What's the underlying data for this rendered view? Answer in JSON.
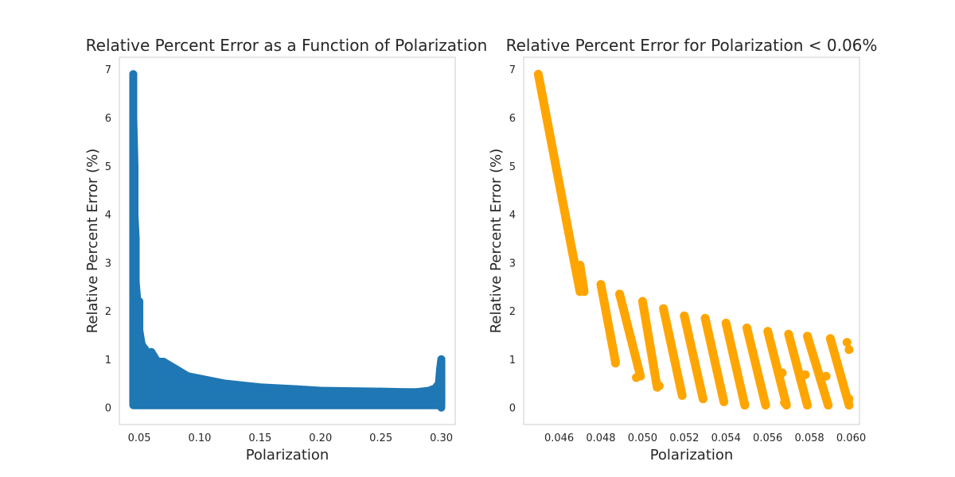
{
  "chart_data": [
    {
      "type": "scatter",
      "title": "Relative Percent Error as a Function of Polarization",
      "xlabel": "Polarization",
      "ylabel": "Relative Percent Error (%)",
      "xlim": [
        0.0335,
        0.3115
      ],
      "ylim": [
        -0.35,
        7.25
      ],
      "xticks": [
        0.05,
        0.1,
        0.15,
        0.2,
        0.25,
        0.3
      ],
      "xtick_labels": [
        "0.05",
        "0.10",
        "0.15",
        "0.20",
        "0.25",
        "0.30"
      ],
      "yticks": [
        0,
        1,
        2,
        3,
        4,
        5,
        6,
        7
      ],
      "ytick_labels": [
        "0",
        "1",
        "2",
        "3",
        "4",
        "5",
        "6",
        "7"
      ],
      "grid": false,
      "color": "#1f77b4",
      "x": [
        0.045,
        0.045,
        0.046,
        0.046,
        0.047,
        0.047,
        0.047,
        0.048,
        0.048,
        0.049,
        0.05,
        0.05,
        0.052,
        0.055,
        0.058,
        0.06,
        0.065,
        0.07,
        0.08,
        0.09,
        0.1,
        0.12,
        0.15,
        0.18,
        0.2,
        0.22,
        0.25,
        0.27,
        0.28,
        0.29,
        0.295,
        0.298,
        0.299,
        0.3,
        0.3
      ],
      "y": [
        6.9,
        6.0,
        5.0,
        4.0,
        3.5,
        3.0,
        2.6,
        2.3,
        2.0,
        1.8,
        2.2,
        1.6,
        1.3,
        1.2,
        1.0,
        1.15,
        0.95,
        0.95,
        0.8,
        0.65,
        0.6,
        0.5,
        0.42,
        0.38,
        0.35,
        0.34,
        0.33,
        0.32,
        0.32,
        0.35,
        0.4,
        0.5,
        0.8,
        1.0,
        0.0
      ]
    },
    {
      "type": "scatter",
      "title": "Relative Percent Error for Polarization < 0.06%",
      "xlabel": "Polarization",
      "ylabel": "Relative Percent Error (%)",
      "xlim": [
        0.0443,
        0.0604
      ],
      "ylim": [
        -0.35,
        7.25
      ],
      "xticks": [
        0.046,
        0.048,
        0.05,
        0.052,
        0.054,
        0.056,
        0.058,
        0.06
      ],
      "xtick_labels": [
        "0.046",
        "0.048",
        "0.050",
        "0.052",
        "0.054",
        "0.056",
        "0.058",
        "0.060"
      ],
      "yticks": [
        0,
        1,
        2,
        3,
        4,
        5,
        6,
        7
      ],
      "ytick_labels": [
        "0",
        "1",
        "2",
        "3",
        "4",
        "5",
        "6",
        "7"
      ],
      "grid": false,
      "color": "#ffa500",
      "segments": [
        {
          "x0": 0.045,
          "y0": 6.9,
          "x1": 0.047,
          "y1": 2.4
        },
        {
          "x0": 0.047,
          "y0": 2.95,
          "x1": 0.0472,
          "y1": 2.4
        },
        {
          "x0": 0.048,
          "y0": 2.55,
          "x1": 0.0487,
          "y1": 0.95
        },
        {
          "x0": 0.0489,
          "y0": 2.35,
          "x1": 0.0499,
          "y1": 0.65
        },
        {
          "x0": 0.05,
          "y0": 2.2,
          "x1": 0.0507,
          "y1": 0.42
        },
        {
          "x0": 0.051,
          "y0": 2.05,
          "x1": 0.0519,
          "y1": 0.25
        },
        {
          "x0": 0.052,
          "y0": 1.9,
          "x1": 0.0529,
          "y1": 0.18
        },
        {
          "x0": 0.053,
          "y0": 1.85,
          "x1": 0.0539,
          "y1": 0.12
        },
        {
          "x0": 0.054,
          "y0": 1.75,
          "x1": 0.0549,
          "y1": 0.05
        },
        {
          "x0": 0.055,
          "y0": 1.65,
          "x1": 0.0559,
          "y1": 0.05
        },
        {
          "x0": 0.056,
          "y0": 1.58,
          "x1": 0.0569,
          "y1": 0.05
        },
        {
          "x0": 0.057,
          "y0": 1.52,
          "x1": 0.0579,
          "y1": 0.05
        },
        {
          "x0": 0.0579,
          "y0": 1.48,
          "x1": 0.0589,
          "y1": 0.05
        },
        {
          "x0": 0.059,
          "y0": 1.43,
          "x1": 0.0599,
          "y1": 0.05
        }
      ],
      "points": [
        {
          "x": 0.0567,
          "y": 0.72
        },
        {
          "x": 0.0578,
          "y": 0.68
        },
        {
          "x": 0.0588,
          "y": 0.65
        },
        {
          "x": 0.0598,
          "y": 1.35
        },
        {
          "x": 0.0599,
          "y": 1.2
        },
        {
          "x": 0.0599,
          "y": 0.18
        },
        {
          "x": 0.0549,
          "y": 0.08
        },
        {
          "x": 0.0568,
          "y": 0.1
        },
        {
          "x": 0.0487,
          "y": 0.92
        },
        {
          "x": 0.0497,
          "y": 0.62
        },
        {
          "x": 0.0508,
          "y": 0.45
        }
      ]
    }
  ]
}
